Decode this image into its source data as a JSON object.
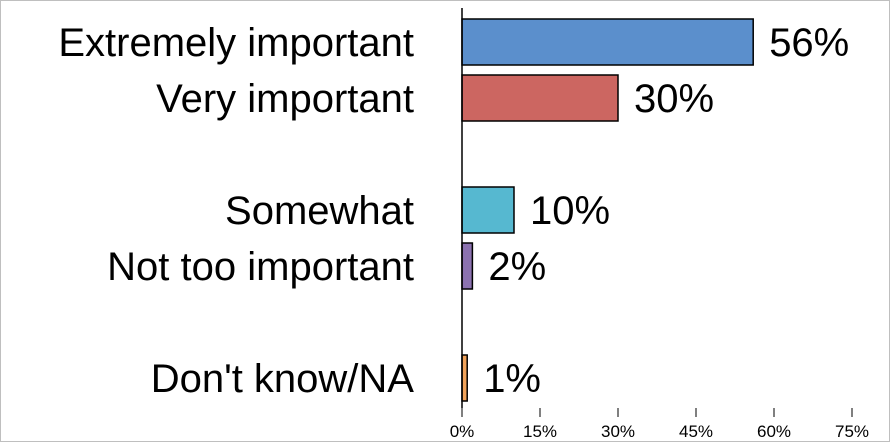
{
  "chart_data": {
    "type": "bar",
    "orientation": "horizontal",
    "categories": [
      "Extremely important",
      "Very important",
      "Somewhat",
      "Not too important",
      "Don't know/NA"
    ],
    "values": [
      56,
      30,
      10,
      2,
      1
    ],
    "value_labels": [
      "56%",
      "30%",
      "10%",
      "2%",
      "1%"
    ],
    "colors": [
      "#5b8fcc",
      "#cc6661",
      "#56b8d0",
      "#8c72b0",
      "#f0a25a"
    ],
    "xlim": [
      0,
      75
    ],
    "x_ticks": [
      0,
      15,
      30,
      45,
      60,
      75
    ],
    "x_tick_labels": [
      "0%",
      "15%",
      "30%",
      "45%",
      "60%",
      "75%"
    ],
    "grid": false,
    "legend": "none",
    "title": "",
    "xlabel": "",
    "ylabel": ""
  }
}
